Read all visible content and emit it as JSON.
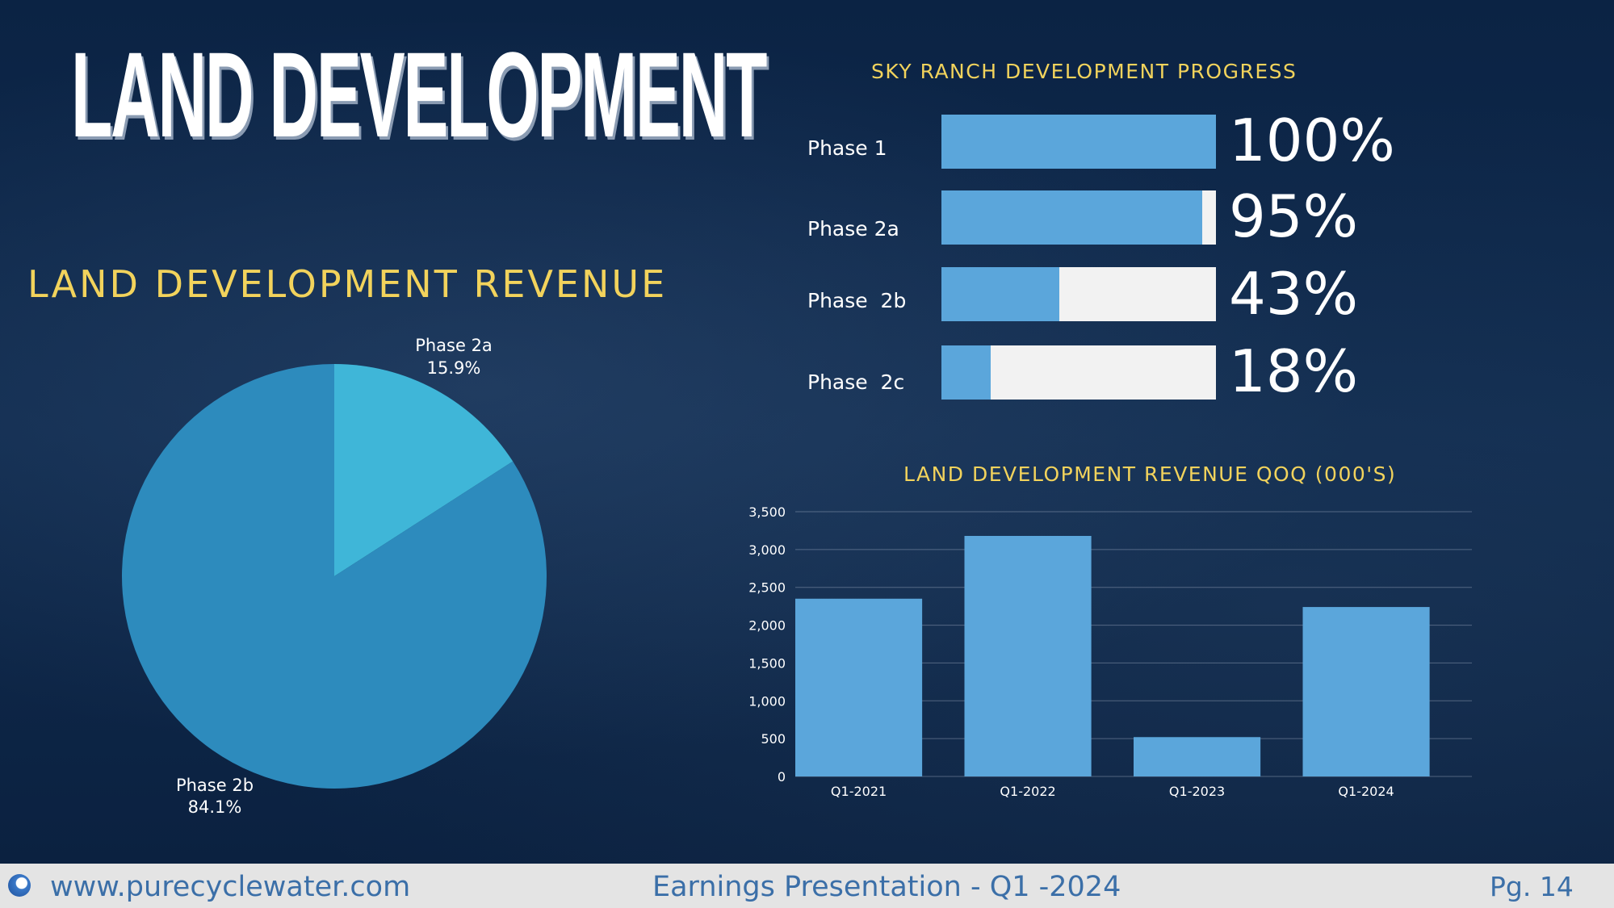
{
  "slide": {
    "title": "LAND DEVELOPMENT"
  },
  "revenue_title": "LAND DEVELOPMENT REVENUE",
  "progress": {
    "title": "SKY RANCH DEVELOPMENT PROGRESS",
    "items": [
      {
        "label": "Phase 1",
        "percent": 100,
        "display": "100%"
      },
      {
        "label": "Phase 2a",
        "percent": 95,
        "display": "95%"
      },
      {
        "label": "Phase  2b",
        "percent": 43,
        "display": "43%"
      },
      {
        "label": "Phase  2c",
        "percent": 18,
        "display": "18%"
      }
    ]
  },
  "qoq_title": "LAND DEVELOPMENT REVENUE QOQ (000'S)",
  "chart_data": [
    {
      "type": "pie",
      "title": "LAND DEVELOPMENT REVENUE",
      "slices": [
        {
          "label": "Phase 2a",
          "value": 15.9,
          "display": "15.9%",
          "color": "#3fb6d8"
        },
        {
          "label": "Phase 2b",
          "value": 84.1,
          "display": "84.1%",
          "color": "#2d8bbd"
        }
      ]
    },
    {
      "type": "bar",
      "title": "LAND DEVELOPMENT REVENUE QOQ (000'S)",
      "categories": [
        "Q1-2021",
        "Q1-2022",
        "Q1-2023",
        "Q1-2024"
      ],
      "values": [
        2350,
        3180,
        520,
        2240
      ],
      "ylim": [
        0,
        3500
      ],
      "yticks": [
        0,
        500,
        1000,
        1500,
        2000,
        2500,
        3000,
        3500
      ],
      "ytick_labels": [
        "0",
        "500",
        "1,000",
        "1,500",
        "2,000",
        "2,500",
        "3,000",
        "3,500"
      ],
      "grid": true,
      "bar_color": "#5ba6db"
    }
  ],
  "footer": {
    "url": "www.purecyclewater.com",
    "center": "Earnings Presentation - Q1 -2024",
    "page": "Pg. 14"
  },
  "colors": {
    "accent_yellow": "#f2d35c",
    "bar_blue": "#5ba6db",
    "background": "#0d2545"
  }
}
